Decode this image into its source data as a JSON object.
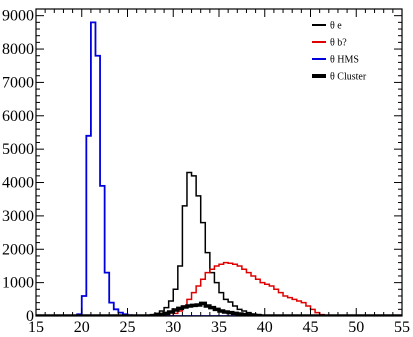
{
  "chart_data": {
    "type": "line",
    "title": "",
    "xlabel": "",
    "ylabel": "",
    "xlim": [
      15,
      55
    ],
    "ylim": [
      0,
      9200
    ],
    "x_ticks": [
      15,
      20,
      25,
      30,
      35,
      40,
      45,
      50,
      55
    ],
    "y_ticks": [
      0,
      1000,
      2000,
      3000,
      4000,
      5000,
      6000,
      7000,
      8000,
      9000
    ],
    "grid": false,
    "legend_position": "top-right",
    "bin_width": 0.5,
    "series": [
      {
        "name": "θ e",
        "color": "#000000",
        "line_width": 1.5,
        "bins_start": 27,
        "values": [
          20,
          40,
          80,
          150,
          250,
          450,
          800,
          1500,
          3300,
          4300,
          4200,
          3600,
          2800,
          1900,
          1300,
          1000,
          700,
          500,
          420,
          300,
          200,
          150,
          100,
          60,
          40,
          20,
          10,
          5,
          0
        ]
      },
      {
        "name": "θ b?",
        "color": "#e00000",
        "line_width": 1.5,
        "bins_start": 30,
        "values": [
          80,
          150,
          300,
          500,
          700,
          900,
          1100,
          1300,
          1400,
          1500,
          1550,
          1600,
          1580,
          1550,
          1500,
          1400,
          1300,
          1200,
          1100,
          1000,
          950,
          900,
          800,
          700,
          600,
          550,
          500,
          450,
          400,
          300,
          200,
          100,
          40,
          0
        ]
      },
      {
        "name": "θ HMS",
        "color": "#0000dd",
        "line_width": 1.8,
        "bins_start": 19.5,
        "values": [
          50,
          600,
          5400,
          8800,
          7800,
          3900,
          1300,
          400,
          200,
          100,
          50,
          20,
          0
        ]
      },
      {
        "name": "θ Cluster",
        "color": "#000000",
        "line_width": 3.5,
        "bins_start": 28,
        "values": [
          20,
          50,
          80,
          120,
          180,
          230,
          270,
          300,
          320,
          330,
          380,
          300,
          250,
          200,
          150,
          120,
          100,
          80,
          60,
          40,
          30,
          20,
          10,
          0
        ]
      }
    ]
  }
}
